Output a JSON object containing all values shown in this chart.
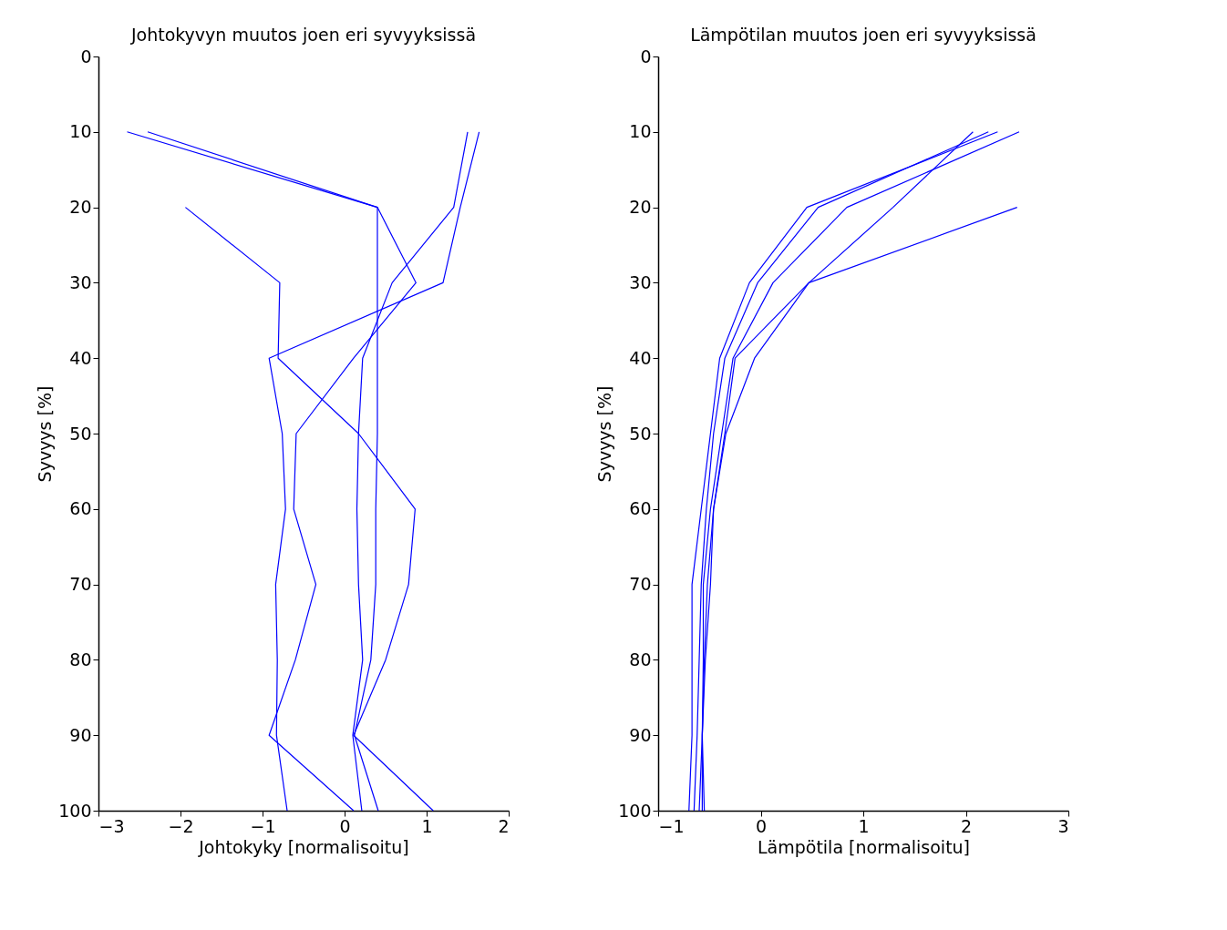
{
  "chart_data": [
    {
      "type": "line",
      "title": "Johtokyvyn muutos joen eri syvyyksissä",
      "xlabel": "Johtokyky [normalisoitu]",
      "ylabel": "Syvyys [%]",
      "xlim": [
        -3,
        2
      ],
      "xticks": [
        -3,
        -2,
        -1,
        0,
        1,
        2
      ],
      "ylim": [
        100,
        0
      ],
      "yticks": [
        0,
        10,
        20,
        30,
        40,
        50,
        60,
        70,
        80,
        90,
        100
      ],
      "grid": false,
      "legend": false,
      "series": [
        {
          "color": "#0000ff",
          "x": [
            -2.65,
            0.4,
            0.4,
            0.4,
            0.4,
            0.38,
            0.38,
            0.32,
            0.12,
            0.41
          ],
          "values": [
            10,
            20,
            30,
            40,
            50,
            60,
            70,
            80,
            90,
            100
          ]
        },
        {
          "color": "#0000ff",
          "x": [
            -2.4,
            0.4,
            0.87,
            0.11,
            -0.59,
            -0.62,
            -0.35,
            -0.6,
            -0.92,
            0.11
          ],
          "values": [
            10,
            20,
            30,
            40,
            50,
            60,
            70,
            80,
            90,
            100
          ]
        },
        {
          "color": "#0000ff",
          "x": [
            1.64,
            1.41,
            1.2,
            -0.92,
            -0.76,
            -0.72,
            -0.84,
            -0.82,
            -0.83,
            -0.7
          ],
          "values": [
            10,
            20,
            30,
            40,
            50,
            60,
            70,
            80,
            90,
            100
          ]
        },
        {
          "color": "#0000ff",
          "x": [
            1.5,
            1.33,
            0.58,
            0.22,
            0.17,
            0.15,
            0.17,
            0.22,
            0.1,
            0.21
          ],
          "values": [
            10,
            20,
            30,
            40,
            50,
            60,
            70,
            80,
            90,
            100
          ]
        },
        {
          "color": "#0000ff",
          "x": [
            -1.94,
            -0.79,
            -0.81,
            0.17,
            0.86,
            0.78,
            0.5,
            0.11,
            1.08
          ],
          "values": [
            20,
            30,
            40,
            50,
            60,
            70,
            80,
            90,
            100
          ]
        }
      ]
    },
    {
      "type": "line",
      "title": "Lämpötilan muutos joen eri syvyyksissä",
      "xlabel": "Lämpötila [normalisoitu]",
      "ylabel": "Syvyys [%]",
      "xlim": [
        -1,
        3
      ],
      "xticks": [
        -1,
        0,
        1,
        2,
        3
      ],
      "ylim": [
        100,
        0
      ],
      "yticks": [
        0,
        10,
        20,
        30,
        40,
        50,
        60,
        70,
        80,
        90,
        100
      ],
      "grid": false,
      "legend": false,
      "series": [
        {
          "color": "#0000ff",
          "x": [
            2.31,
            0.45,
            -0.11,
            -0.4,
            -0.49,
            -0.58,
            -0.67,
            -0.67,
            -0.67,
            -0.7
          ],
          "values": [
            10,
            20,
            30,
            40,
            50,
            60,
            70,
            80,
            90,
            100
          ]
        },
        {
          "color": "#0000ff",
          "x": [
            2.22,
            0.56,
            -0.03,
            -0.35,
            -0.46,
            -0.53,
            -0.58,
            -0.6,
            -0.62,
            -0.65
          ],
          "values": [
            10,
            20,
            30,
            40,
            50,
            60,
            70,
            80,
            90,
            100
          ]
        },
        {
          "color": "#0000ff",
          "x": [
            2.52,
            0.84,
            0.12,
            -0.27,
            -0.38,
            -0.49,
            -0.56,
            -0.56,
            -0.57,
            -0.6
          ],
          "values": [
            10,
            20,
            30,
            40,
            50,
            60,
            70,
            80,
            90,
            100
          ]
        },
        {
          "color": "#0000ff",
          "x": [
            2.07,
            1.29,
            0.47,
            -0.25,
            -0.35,
            -0.46,
            -0.49,
            -0.54,
            -0.57,
            -0.57
          ],
          "values": [
            10,
            20,
            30,
            40,
            50,
            60,
            70,
            80,
            90,
            100
          ]
        },
        {
          "color": "#0000ff",
          "x": [
            2.5,
            0.47,
            -0.06,
            -0.34,
            -0.46,
            -0.52,
            -0.55,
            -0.57,
            -0.55
          ],
          "values": [
            20,
            30,
            40,
            50,
            60,
            70,
            80,
            90,
            100
          ]
        }
      ]
    }
  ]
}
